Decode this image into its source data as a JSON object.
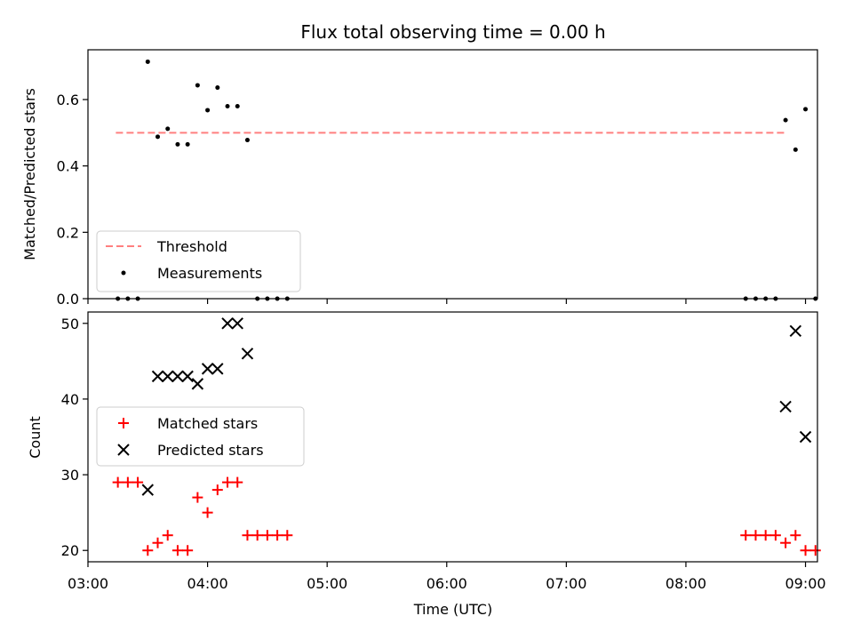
{
  "chart_data": [
    {
      "type": "scatter",
      "title": "Flux total observing time = 0.00 h",
      "xlabel": "",
      "ylabel": "Matched/Predicted stars",
      "xlim": [
        "03:00",
        "09:06"
      ],
      "ylim": [
        0,
        0.75
      ],
      "yticks": [
        "0.0",
        "0.2",
        "0.4",
        "0.6"
      ],
      "legend_position": "lower-left",
      "threshold": {
        "name": "Threshold",
        "value": 0.5,
        "x_range": [
          "03:14",
          "08:50"
        ],
        "color": "#ff7f7f",
        "style": "dashed"
      },
      "series": [
        {
          "name": "Measurements",
          "marker": "dot",
          "color": "#000000",
          "x": [
            "03:15",
            "03:20",
            "03:25",
            "03:30",
            "03:35",
            "03:40",
            "03:45",
            "03:50",
            "03:55",
            "04:00",
            "04:05",
            "04:10",
            "04:15",
            "04:20",
            "04:25",
            "04:30",
            "04:35",
            "04:40",
            "08:30",
            "08:35",
            "08:40",
            "08:45",
            "08:50",
            "08:55",
            "09:00",
            "09:05"
          ],
          "y": [
            0.0,
            0.0,
            0.0,
            0.714,
            0.488,
            0.512,
            0.465,
            0.465,
            0.643,
            0.568,
            0.636,
            0.58,
            0.58,
            0.478,
            0.0,
            0.0,
            0.0,
            0.0,
            0.0,
            0.0,
            0.0,
            0.0,
            0.538,
            0.449,
            0.571,
            0.0
          ]
        }
      ]
    },
    {
      "type": "scatter",
      "title": "",
      "xlabel": "Time (UTC)",
      "ylabel": "Count",
      "xlim": [
        "03:00",
        "09:06"
      ],
      "ylim": [
        18.5,
        51.5
      ],
      "yticks": [
        "20",
        "30",
        "40",
        "50"
      ],
      "xticks": [
        "03:00",
        "04:00",
        "05:00",
        "06:00",
        "07:00",
        "08:00",
        "09:00"
      ],
      "legend_position": "center-left",
      "series": [
        {
          "name": "Matched stars",
          "marker": "plus",
          "color": "#ff0000",
          "x": [
            "03:15",
            "03:20",
            "03:25",
            "03:30",
            "03:35",
            "03:40",
            "03:45",
            "03:50",
            "03:55",
            "04:00",
            "04:05",
            "04:10",
            "04:15",
            "04:20",
            "04:25",
            "04:30",
            "04:35",
            "04:40",
            "08:30",
            "08:35",
            "08:40",
            "08:45",
            "08:50",
            "08:55",
            "09:00",
            "09:05"
          ],
          "y": [
            29,
            29,
            29,
            20,
            21,
            22,
            20,
            20,
            27,
            25,
            28,
            29,
            29,
            22,
            22,
            22,
            22,
            22,
            22,
            22,
            22,
            22,
            21,
            22,
            20,
            20
          ]
        },
        {
          "name": "Predicted stars",
          "marker": "x",
          "color": "#000000",
          "x": [
            "03:30",
            "03:35",
            "03:40",
            "03:45",
            "03:50",
            "03:55",
            "04:00",
            "04:05",
            "04:10",
            "04:15",
            "04:20",
            "08:50",
            "08:55",
            "09:00"
          ],
          "y": [
            28,
            43,
            43,
            43,
            43,
            42,
            44,
            44,
            50,
            50,
            46,
            39,
            49,
            35
          ]
        }
      ]
    }
  ]
}
